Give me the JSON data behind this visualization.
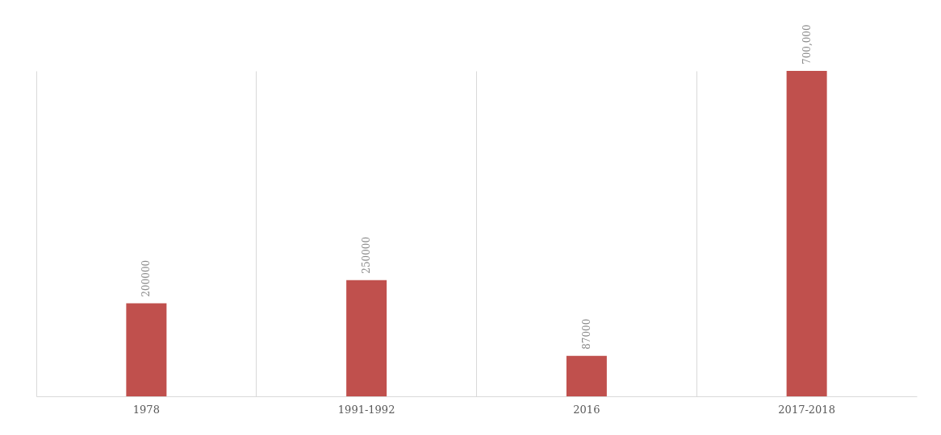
{
  "chart_data": {
    "type": "bar",
    "categories": [
      "1978",
      "1991-1992",
      "2016",
      "2017-2018"
    ],
    "values": [
      200000,
      250000,
      87000,
      700000
    ],
    "value_labels": [
      "200000",
      "250000",
      "87000",
      "700,000"
    ],
    "color": "#c0504d",
    "grid": "x",
    "tick_labels": "x"
  }
}
